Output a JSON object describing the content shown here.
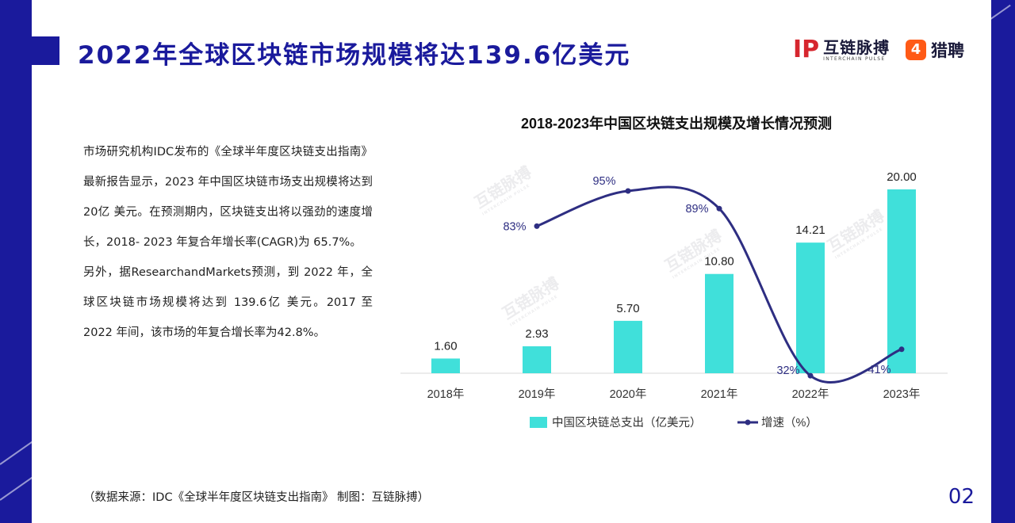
{
  "header": {
    "title": "2022年全球区块链市场规模将达139.6亿美元",
    "logo_primary_mark": "IP",
    "logo_primary_name": "互链脉搏",
    "logo_primary_subtitle": "INTERCHAIN PULSE",
    "logo_secondary_mark": "4",
    "logo_secondary_name": "猎聘"
  },
  "body": {
    "paragraphs": [
      "市场研究机构IDC发布的《全球半年度区块链支出指南》最新报告显示，2023 年中国区块链市场支出规模将达到 20亿 美元。在预测期内，区块链支出将以强劲的速度增长，2018- 2023 年复合年增长率(CAGR)为 65.7%。",
      "另外，据ResearchandMarkets预测，到 2022 年，全球区块链市场规模将达到 139.6亿 美元。2017 至 2022 年间，该市场的年复合增长率为42.8%。"
    ]
  },
  "watermark": {
    "text": "互链脉搏",
    "subtext": "INTERCHAIN PULSE"
  },
  "footer": {
    "source": "（数据来源：IDC《全球半年度区块链支出指南》   制图：互链脉搏）",
    "page_number": "02"
  },
  "colors": {
    "brand_navy": "#1a1a9c",
    "bar": "#40e0da",
    "line": "#2e2e82"
  },
  "chart_data": {
    "type": "bar",
    "title": "2018-2023年中国区块链支出规模及增长情况预测",
    "categories": [
      "2018年",
      "2019年",
      "2020年",
      "2021年",
      "2022年",
      "2023年"
    ],
    "series": [
      {
        "name": "中国区块链总支出（亿美元）",
        "type": "bar",
        "values": [
          1.6,
          2.93,
          5.7,
          10.8,
          14.21,
          20.0
        ],
        "labels": [
          "1.60",
          "2.93",
          "5.70",
          "10.80",
          "14.21",
          "20.00"
        ]
      },
      {
        "name": "增速（%）",
        "type": "line",
        "values": [
          null,
          83,
          95,
          89,
          32,
          41
        ],
        "labels": [
          "",
          "83%",
          "95%",
          "89%",
          "32%",
          "41%"
        ]
      }
    ],
    "legend_position": "bottom",
    "grid": false
  }
}
